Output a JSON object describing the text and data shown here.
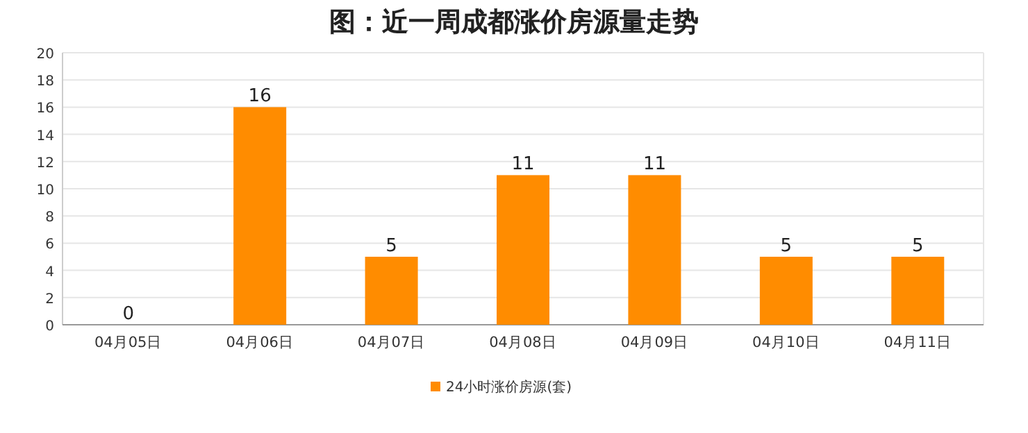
{
  "chart_data": {
    "type": "bar",
    "title": "图：近一周成都涨价房源量走势",
    "categories": [
      "04月05日",
      "04月06日",
      "04月07日",
      "04月08日",
      "04月09日",
      "04月10日",
      "04月11日"
    ],
    "series": [
      {
        "name": "24小时涨价房源(套)",
        "color": "#ff8c00",
        "values": [
          0,
          16,
          5,
          11,
          11,
          5,
          5
        ]
      }
    ],
    "ylim": [
      0,
      20
    ],
    "yticks": [
      0,
      2,
      4,
      6,
      8,
      10,
      12,
      14,
      16,
      18,
      20
    ],
    "grid": "y",
    "legend": "bottom",
    "data_labels": true
  }
}
